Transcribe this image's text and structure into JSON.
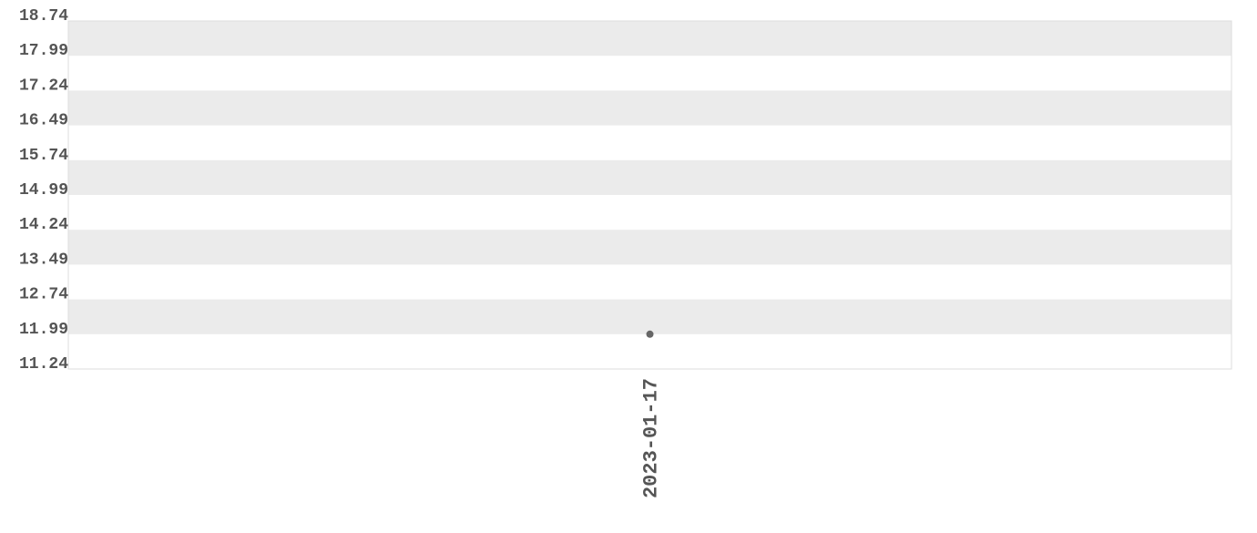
{
  "chart_data": {
    "type": "scatter",
    "title": "",
    "xlabel": "",
    "ylabel": "",
    "ylim": [
      11.24,
      18.74
    ],
    "y_ticks": [
      "18.74",
      "17.99",
      "17.24",
      "16.49",
      "15.74",
      "14.99",
      "14.24",
      "13.49",
      "12.74",
      "11.99",
      "11.24"
    ],
    "x_ticks": [
      "2023-01-17"
    ],
    "points": [
      {
        "x": "2023-01-17",
        "y": 11.99
      }
    ],
    "grid": "alternating horizontal bands",
    "colors": {
      "band": "#ebebeb",
      "point": "#666666",
      "text": "#555555",
      "border": "#dddddd"
    }
  }
}
